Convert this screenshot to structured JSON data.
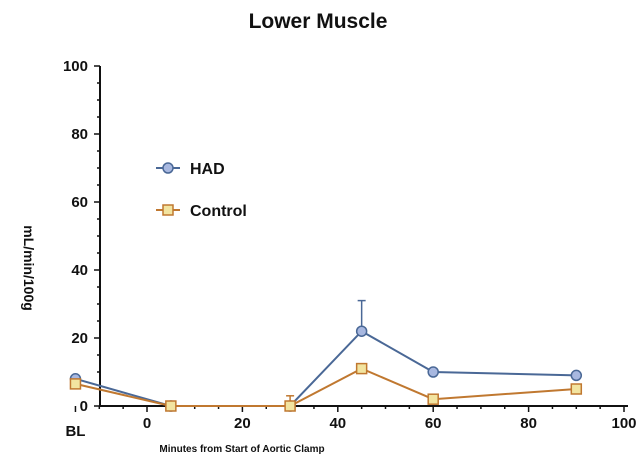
{
  "chart_data": {
    "type": "line",
    "title": "Lower Muscle",
    "xlabel": "Minutes from Start of Aortic Clamp",
    "ylabel": "mL/min/100g",
    "xlim": [
      -15,
      100
    ],
    "ylim": [
      0,
      100
    ],
    "x_ticks": [
      0,
      20,
      40,
      60,
      80,
      100
    ],
    "y_ticks": [
      0,
      20,
      40,
      60,
      80,
      100
    ],
    "baseline_label": "BL",
    "legend_position": "upper-left",
    "grid": false,
    "series": [
      {
        "name": "HAD",
        "color": "#4a6896",
        "marker": "circle",
        "marker_fill": "#a8b8e0",
        "x": [
          -15,
          5,
          30,
          45,
          60,
          90
        ],
        "y": [
          8,
          0,
          0,
          22,
          10,
          9
        ],
        "error": [
          0,
          0,
          0,
          9,
          0,
          0
        ]
      },
      {
        "name": "Control",
        "color": "#c07830",
        "marker": "square",
        "marker_fill": "#f2e4a0",
        "x": [
          -15,
          5,
          30,
          45,
          60,
          90
        ],
        "y": [
          6.5,
          0,
          0,
          11,
          2,
          5
        ],
        "error": [
          0,
          0,
          3,
          0,
          0,
          0
        ]
      }
    ]
  }
}
